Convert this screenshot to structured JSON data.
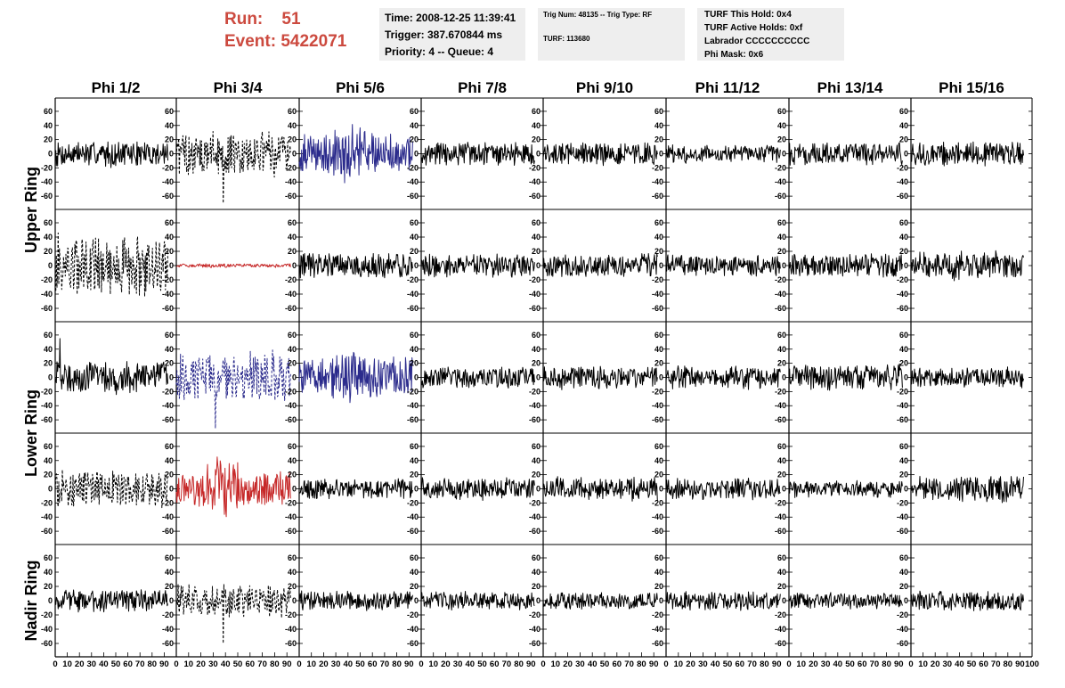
{
  "header": {
    "run_label": "Run:",
    "run_value": "51",
    "event_label": "Event:",
    "event_value": "5422071",
    "time_line": "Time: 2008-12-25 11:39:41",
    "trigger_line": "Trigger: 387.670844 ms",
    "priority_line": "Priority: 4 -- Queue: 4",
    "trig_line": "Trig Num: 48135 -- Trig Type: RF",
    "turf_line": "TURF: 113680",
    "turf_hold": "TURF This Hold: 0x4",
    "turf_active": "TURF Active Holds: 0xf",
    "labrador": "Labrador CCCCCCCCCC",
    "phi_mask": "Phi Mask: 0x6"
  },
  "colors": {
    "run_text": "#cc4a3f",
    "trace_default": "#000000",
    "trace_blue": "#2b2b8c",
    "trace_red": "#c62828",
    "info_box_bg": "#eeeeee"
  },
  "chart_data": {
    "type": "line",
    "columns": [
      "Phi 1/2",
      "Phi 3/4",
      "Phi 5/6",
      "Phi 7/8",
      "Phi 9/10",
      "Phi 11/12",
      "Phi 13/14",
      "Phi 15/16"
    ],
    "row_labels": [
      {
        "text": "Upper Ring",
        "rows": [
          0,
          1
        ]
      },
      {
        "text": "Lower Ring",
        "rows": [
          2,
          3
        ]
      },
      {
        "text": "Nadir Ring",
        "rows": [
          4,
          4
        ]
      }
    ],
    "x_range": [
      0,
      100
    ],
    "y_range": [
      -75,
      75
    ],
    "y_ticks": [
      -60,
      -40,
      -20,
      0,
      20,
      40,
      60
    ],
    "x_ticks": [
      0,
      10,
      20,
      30,
      40,
      50,
      60,
      70,
      80,
      90,
      100
    ],
    "x_tick_text": [
      "0",
      "10",
      "20",
      "30",
      "40",
      "50",
      "60",
      "70",
      "80",
      "90",
      "100"
    ],
    "x_tick_text_last": "100",
    "x_end": 93,
    "panels": [
      {
        "row": 0,
        "col": 0,
        "amp": 20,
        "style": "solid",
        "color": "#000000"
      },
      {
        "row": 0,
        "col": 1,
        "amp": 35,
        "style": "dashed",
        "color": "#000000",
        "spike": {
          "x": 38,
          "y": -70
        }
      },
      {
        "row": 0,
        "col": 2,
        "amp": 30,
        "style": "solid",
        "color": "#2b2b8c",
        "burst": {
          "x": 40,
          "w": 18,
          "amp": 48
        }
      },
      {
        "row": 0,
        "col": 3,
        "amp": 18,
        "style": "solid",
        "color": "#000000"
      },
      {
        "row": 0,
        "col": 4,
        "amp": 18,
        "style": "solid",
        "color": "#000000"
      },
      {
        "row": 0,
        "col": 5,
        "amp": 14,
        "style": "solid",
        "color": "#000000"
      },
      {
        "row": 0,
        "col": 6,
        "amp": 17,
        "style": "solid",
        "color": "#000000"
      },
      {
        "row": 0,
        "col": 7,
        "amp": 18,
        "style": "solid",
        "color": "#000000"
      },
      {
        "row": 1,
        "col": 0,
        "amp": 48,
        "style": "dashed",
        "color": "#000000"
      },
      {
        "row": 1,
        "col": 1,
        "amp": 3,
        "style": "solid",
        "color": "#c62828"
      },
      {
        "row": 1,
        "col": 2,
        "amp": 20,
        "style": "solid",
        "color": "#000000"
      },
      {
        "row": 1,
        "col": 3,
        "amp": 18,
        "style": "solid",
        "color": "#000000"
      },
      {
        "row": 1,
        "col": 4,
        "amp": 18,
        "style": "solid",
        "color": "#000000"
      },
      {
        "row": 1,
        "col": 5,
        "amp": 16,
        "style": "solid",
        "color": "#000000"
      },
      {
        "row": 1,
        "col": 6,
        "amp": 18,
        "style": "solid",
        "color": "#000000"
      },
      {
        "row": 1,
        "col": 7,
        "amp": 22,
        "style": "solid",
        "color": "#000000"
      },
      {
        "row": 2,
        "col": 0,
        "amp": 25,
        "style": "solid",
        "color": "#000000",
        "spike": {
          "x": 4,
          "y": 55
        }
      },
      {
        "row": 2,
        "col": 1,
        "amp": 40,
        "style": "dashed",
        "color": "#2b2b8c",
        "spike": {
          "x": 32,
          "y": -72
        }
      },
      {
        "row": 2,
        "col": 2,
        "amp": 30,
        "style": "solid",
        "color": "#2b2b8c",
        "burst": {
          "x": 40,
          "w": 18,
          "amp": 50
        }
      },
      {
        "row": 2,
        "col": 3,
        "amp": 17,
        "style": "solid",
        "color": "#000000"
      },
      {
        "row": 2,
        "col": 4,
        "amp": 18,
        "style": "solid",
        "color": "#000000"
      },
      {
        "row": 2,
        "col": 5,
        "amp": 18,
        "style": "solid",
        "color": "#000000"
      },
      {
        "row": 2,
        "col": 6,
        "amp": 20,
        "style": "solid",
        "color": "#000000"
      },
      {
        "row": 2,
        "col": 7,
        "amp": 15,
        "style": "solid",
        "color": "#000000"
      },
      {
        "row": 3,
        "col": 0,
        "amp": 28,
        "style": "dashed",
        "color": "#000000"
      },
      {
        "row": 3,
        "col": 1,
        "amp": 25,
        "style": "solid",
        "color": "#c62828",
        "burst": {
          "x": 38,
          "w": 20,
          "amp": 55
        }
      },
      {
        "row": 3,
        "col": 2,
        "amp": 16,
        "style": "solid",
        "color": "#000000"
      },
      {
        "row": 3,
        "col": 3,
        "amp": 17,
        "style": "solid",
        "color": "#000000"
      },
      {
        "row": 3,
        "col": 4,
        "amp": 18,
        "style": "solid",
        "color": "#000000"
      },
      {
        "row": 3,
        "col": 5,
        "amp": 16,
        "style": "solid",
        "color": "#000000"
      },
      {
        "row": 3,
        "col": 6,
        "amp": 13,
        "style": "solid",
        "color": "#000000"
      },
      {
        "row": 3,
        "col": 7,
        "amp": 20,
        "style": "solid",
        "color": "#000000"
      },
      {
        "row": 4,
        "col": 0,
        "amp": 17,
        "style": "solid",
        "color": "#000000"
      },
      {
        "row": 4,
        "col": 1,
        "amp": 25,
        "style": "dashed",
        "color": "#000000",
        "spike": {
          "x": 38,
          "y": -60
        }
      },
      {
        "row": 4,
        "col": 2,
        "amp": 15,
        "style": "solid",
        "color": "#000000"
      },
      {
        "row": 4,
        "col": 3,
        "amp": 14,
        "style": "solid",
        "color": "#000000"
      },
      {
        "row": 4,
        "col": 4,
        "amp": 13,
        "style": "solid",
        "color": "#000000"
      },
      {
        "row": 4,
        "col": 5,
        "amp": 14,
        "style": "solid",
        "color": "#000000"
      },
      {
        "row": 4,
        "col": 6,
        "amp": 12,
        "style": "solid",
        "color": "#000000"
      },
      {
        "row": 4,
        "col": 7,
        "amp": 15,
        "style": "solid",
        "color": "#000000"
      }
    ]
  }
}
